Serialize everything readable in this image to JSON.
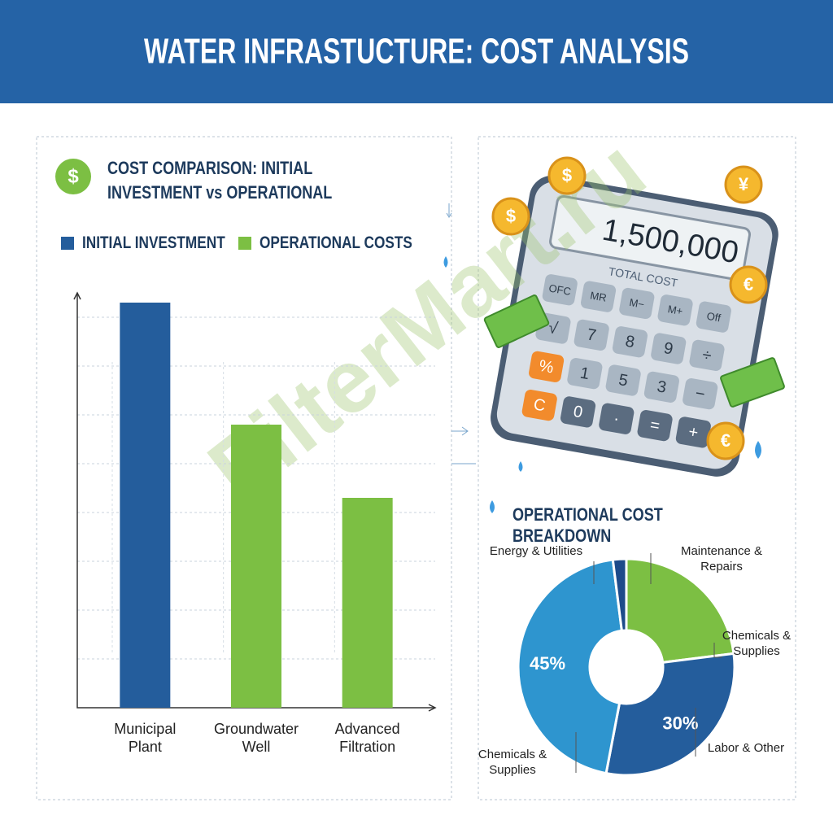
{
  "header": {
    "title": "WATER INFRASTUCTURE: COST ANALYSIS"
  },
  "watermark": "FilterMart.ru",
  "calculator": {
    "display": "1,500,000",
    "caption": "TOTAL COST",
    "keys": [
      [
        "OFC",
        "MR",
        "M−",
        "M+",
        "Off"
      ],
      [
        "√",
        "7",
        "8",
        "9",
        "÷"
      ],
      [
        "%",
        "1",
        "5",
        "3",
        "−"
      ],
      [
        "C",
        "0",
        "·",
        "=",
        "+"
      ]
    ]
  },
  "coins": [
    "$",
    "¥",
    "$",
    "€",
    "€"
  ],
  "chart_data": [
    {
      "type": "bar",
      "title": "COST COMPARISON: INITIAL INVESTMENT vs OPERATIONAL",
      "icon": "$",
      "categories": [
        "Municipal Plant",
        "Groundwater Well",
        "Advanced Filtration"
      ],
      "series": [
        {
          "name": "INITIAL INVESTMENT",
          "color": "#245d9c",
          "values": [
            8.3,
            null,
            null
          ]
        },
        {
          "name": "OPERATIONAL COSTS",
          "color": "#7cbf43",
          "values": [
            null,
            5.8,
            4.3
          ]
        }
      ],
      "ylim": [
        0,
        8.5
      ],
      "yticks": [
        1,
        2,
        3,
        4,
        5,
        6,
        7,
        8
      ],
      "grid": true,
      "tick_labels": false,
      "legend": "top-left"
    },
    {
      "type": "donut",
      "title": "OPERATIONAL COST BREAKDOWN",
      "categories": [
        "Maintenance & Repairs",
        "Labor & Other",
        "Energy & Utilities",
        null
      ],
      "values": [
        23,
        30,
        45,
        2
      ],
      "value_labels": [
        null,
        "30%",
        "45%",
        null
      ],
      "colors": [
        "#7cbf43",
        "#245d9c",
        "#2e95cf",
        "#1d4b8a"
      ],
      "annotations": [
        "Chemicals & Supplies",
        "Chemicals & Supplies"
      ]
    }
  ]
}
